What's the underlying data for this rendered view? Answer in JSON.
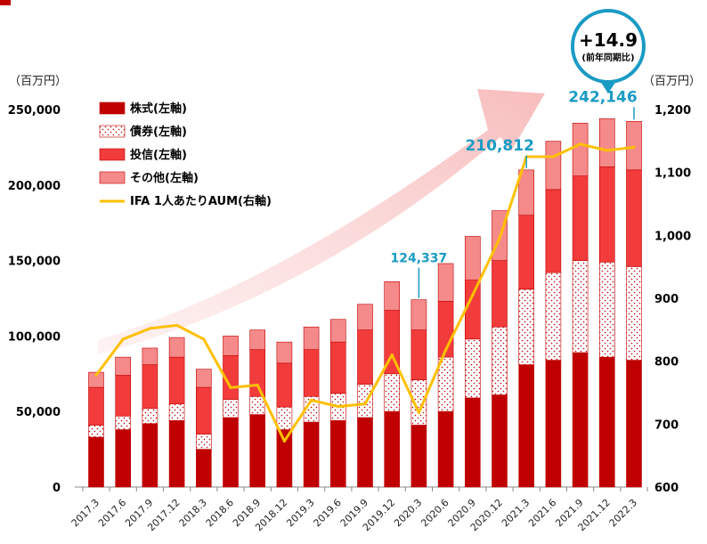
{
  "chart_data": {
    "type": "bar",
    "stacked": true,
    "categories": [
      "2017.3",
      "2017.6",
      "2017.9",
      "2017.12",
      "2018.3",
      "2018.6",
      "2018.9",
      "2018.12",
      "2019.3",
      "2019.6",
      "2019.9",
      "2019.12",
      "2020.3",
      "2020.6",
      "2020.9",
      "2020.12",
      "2021.3",
      "2021.6",
      "2021.9",
      "2021.12",
      "2022.3"
    ],
    "series": [
      {
        "name": "株式(左軸)",
        "type": "bar",
        "color": "#c00000",
        "pattern": "solid",
        "values": [
          33000,
          38000,
          42000,
          44000,
          25000,
          46000,
          48000,
          38000,
          43000,
          44000,
          46000,
          50000,
          41000,
          50000,
          59000,
          61000,
          81000,
          84000,
          89000,
          86000,
          84000
        ]
      },
      {
        "name": "債券(左軸)",
        "type": "bar",
        "color": "#ffffff",
        "pattern": "dots",
        "values": [
          8000,
          9000,
          10000,
          11000,
          10000,
          12000,
          12000,
          15000,
          17000,
          18000,
          22000,
          25000,
          30000,
          36000,
          39000,
          45000,
          50000,
          58000,
          61000,
          63000,
          62000
        ]
      },
      {
        "name": "投信(左軸)",
        "type": "bar",
        "color": "#f23c3c",
        "pattern": "solid",
        "values": [
          25000,
          27000,
          29000,
          31000,
          31000,
          29000,
          31000,
          29000,
          31000,
          34000,
          36000,
          42000,
          33000,
          37000,
          39000,
          44000,
          49000,
          55000,
          56000,
          63000,
          64000
        ]
      },
      {
        "name": "その他(左軸)",
        "type": "bar",
        "color": "#f58a8a",
        "pattern": "solid",
        "values": [
          10000,
          12000,
          11000,
          13000,
          12000,
          13000,
          13000,
          14000,
          15000,
          15000,
          17000,
          19000,
          20000,
          25000,
          29000,
          33000,
          30000,
          32000,
          35000,
          32000,
          32146
        ]
      },
      {
        "name": "IFA 1人あたりAUM(右軸)",
        "type": "line",
        "axis": "right",
        "color": "#ffc000",
        "values": [
          778,
          835,
          852,
          857,
          835,
          758,
          762,
          673,
          738,
          728,
          732,
          810,
          718,
          818,
          905,
          995,
          1125,
          1125,
          1145,
          1135,
          1140
        ]
      }
    ],
    "y_left": {
      "unit": "（百万円）",
      "min": 0,
      "max": 250000,
      "ticks": [
        "0",
        "50,000",
        "100,000",
        "150,000",
        "200,000",
        "250,000"
      ]
    },
    "y_right": {
      "unit": "（百万円）",
      "min": 600,
      "max": 1200,
      "ticks": [
        "600",
        "700",
        "800",
        "900",
        "1,000",
        "1,100",
        "1,200"
      ]
    },
    "annotations": [
      {
        "category": "2020.3",
        "text": "124,337"
      },
      {
        "category": "2021.3",
        "text": "210,812"
      },
      {
        "category": "2022.3",
        "text": "242,146"
      }
    ],
    "callout": {
      "main": "+14.9",
      "sub": "(前年同期比)",
      "color": "#1a9bc4"
    },
    "legend_position": "top-left",
    "grid": false
  }
}
